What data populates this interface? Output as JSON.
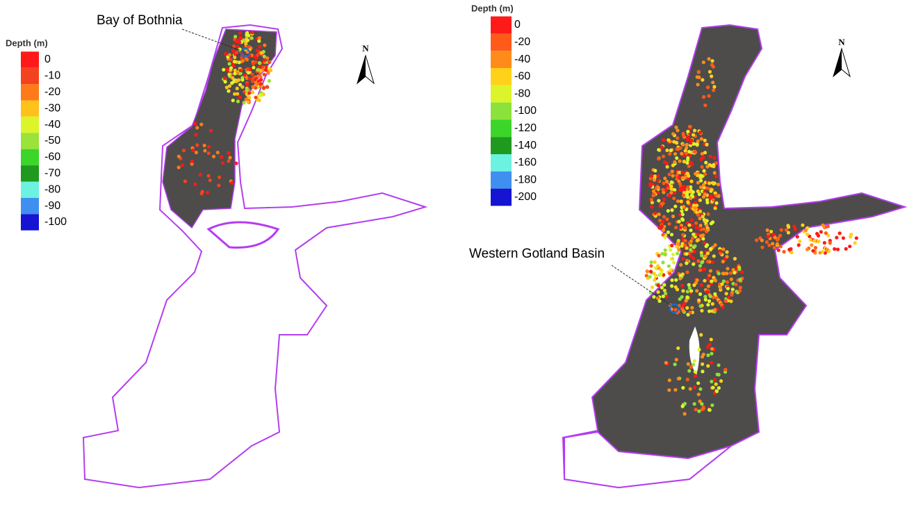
{
  "panels": [
    {
      "legend": {
        "title": "Depth (m)",
        "items": [
          {
            "label": "0",
            "color": "#ff1a1a"
          },
          {
            "label": "-10",
            "color": "#f5421e"
          },
          {
            "label": "-20",
            "color": "#ff7a1a"
          },
          {
            "label": "-30",
            "color": "#ffc21a"
          },
          {
            "label": "-40",
            "color": "#dcf52a"
          },
          {
            "label": "-50",
            "color": "#9be23a"
          },
          {
            "label": "-60",
            "color": "#3cd62a"
          },
          {
            "label": "-70",
            "color": "#1f9a1f"
          },
          {
            "label": "-80",
            "color": "#6cf2e0"
          },
          {
            "label": "-90",
            "color": "#3f8ff0"
          },
          {
            "label": "-100",
            "color": "#1414d2"
          }
        ]
      },
      "annotation": "Bay of Bothnia",
      "north": "N"
    },
    {
      "legend": {
        "title": "Depth (m)",
        "items": [
          {
            "label": "0",
            "color": "#ff1a1a"
          },
          {
            "label": "-20",
            "color": "#ff5a1a"
          },
          {
            "label": "-40",
            "color": "#ff8c1a"
          },
          {
            "label": "-60",
            "color": "#ffd21a"
          },
          {
            "label": "-80",
            "color": "#dcf52a"
          },
          {
            "label": "-100",
            "color": "#8be23a"
          },
          {
            "label": "-120",
            "color": "#3cd62a"
          },
          {
            "label": "-140",
            "color": "#1f9a1f"
          },
          {
            "label": "-160",
            "color": "#6cf2e0"
          },
          {
            "label": "-180",
            "color": "#3f8ff0"
          },
          {
            "label": "-200",
            "color": "#1414d2"
          }
        ]
      },
      "annotation": "Western Gotland Basin",
      "north": "N"
    }
  ]
}
